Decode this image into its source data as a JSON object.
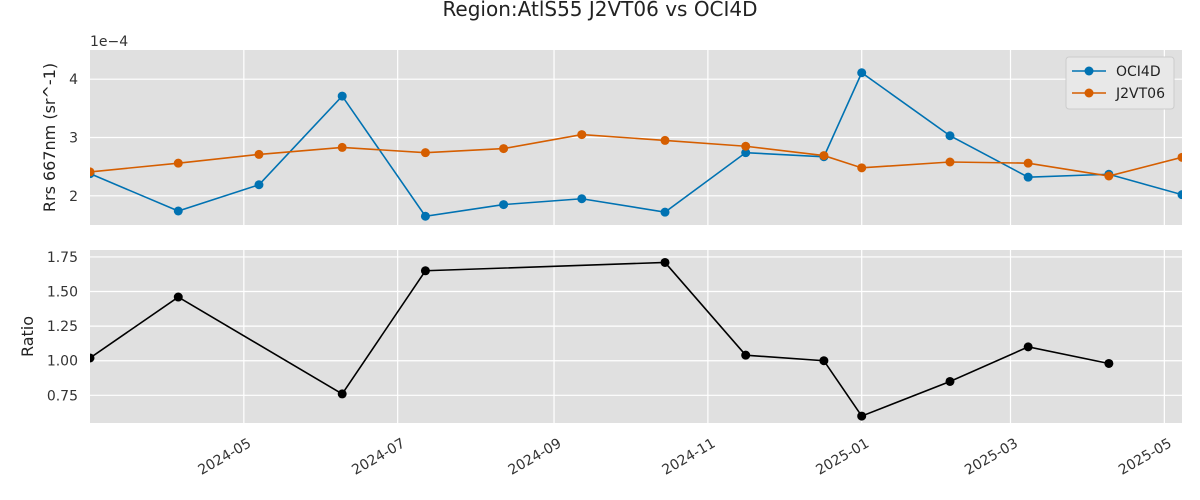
{
  "title": "Region:AtlS55 J2VT06 vs OCI4D",
  "colors": {
    "oci4d": "#0072b2",
    "j2vt06": "#d55e00",
    "ratio": "#000000",
    "panel_bg": "#e0e0e0",
    "grid": "#ffffff"
  },
  "chart_data": [
    {
      "type": "line",
      "ylabel": "Rrs 667nm (sr^-1)",
      "y_offset_label": "1e−4",
      "y_scale": 0.0001,
      "ylim": [
        1.5,
        4.5
      ],
      "yticks": [
        2,
        3,
        4
      ],
      "ytick_labels": [
        "2",
        "3",
        "4"
      ],
      "xlim": [
        "2024-03-01",
        "2025-05-08"
      ],
      "grid": true,
      "legend": "top-right",
      "series": [
        {
          "name": "OCI4D",
          "color": "#0072b2",
          "x": [
            "2024-03-01",
            "2024-04-05",
            "2024-05-07",
            "2024-06-09",
            "2024-07-12",
            "2024-08-12",
            "2024-09-12",
            "2024-10-15",
            "2024-11-16",
            "2024-12-17",
            "2025-01-01",
            "2025-02-05",
            "2025-03-08",
            "2025-04-09",
            "2025-05-08"
          ],
          "values": [
            2.38,
            1.74,
            2.19,
            3.71,
            1.65,
            1.85,
            1.95,
            1.72,
            2.74,
            2.67,
            4.11,
            3.03,
            2.32,
            2.37,
            2.02
          ]
        },
        {
          "name": "J2VT06",
          "color": "#d55e00",
          "x": [
            "2024-03-01",
            "2024-04-05",
            "2024-05-07",
            "2024-06-09",
            "2024-07-12",
            "2024-08-12",
            "2024-09-12",
            "2024-10-15",
            "2024-11-16",
            "2024-12-17",
            "2025-01-01",
            "2025-02-05",
            "2025-03-08",
            "2025-04-09",
            "2025-05-08"
          ],
          "values": [
            2.41,
            2.56,
            2.71,
            2.83,
            2.74,
            2.81,
            3.05,
            2.95,
            2.85,
            2.69,
            2.48,
            2.58,
            2.56,
            2.34,
            2.66
          ]
        }
      ]
    },
    {
      "type": "line",
      "ylabel": "Ratio",
      "ylim": [
        0.55,
        1.8
      ],
      "yticks": [
        0.75,
        1.0,
        1.25,
        1.5,
        1.75
      ],
      "ytick_labels": [
        "0.75",
        "1.00",
        "1.25",
        "1.50",
        "1.75"
      ],
      "xlim": [
        "2024-03-01",
        "2025-05-08"
      ],
      "xticks": [
        "2024-05-01",
        "2024-07-01",
        "2024-09-01",
        "2024-11-01",
        "2025-01-01",
        "2025-03-01",
        "2025-05-01"
      ],
      "xtick_labels": [
        "2024-05",
        "2024-07",
        "2024-09",
        "2024-11",
        "2025-01",
        "2025-03",
        "2025-05"
      ],
      "grid": true,
      "series": [
        {
          "color": "#000000",
          "x": [
            "2024-03-01",
            "2024-04-05",
            "2024-06-09",
            "2024-07-12",
            "2024-10-15",
            "2024-11-16",
            "2024-12-17",
            "2025-01-01",
            "2025-02-05",
            "2025-03-08",
            "2025-04-09"
          ],
          "values": [
            1.02,
            1.46,
            0.76,
            1.65,
            1.71,
            1.04,
            1.0,
            0.6,
            0.85,
            1.1,
            0.98
          ]
        }
      ]
    }
  ]
}
